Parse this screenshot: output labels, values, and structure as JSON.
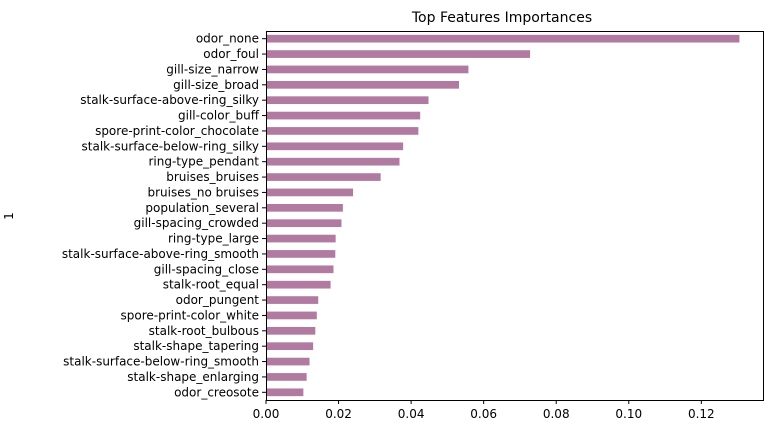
{
  "chart_data": {
    "type": "bar",
    "orientation": "horizontal",
    "title": "Top Features Importances",
    "xlabel": "",
    "ylabel": "1",
    "xlim": [
      0,
      0.137
    ],
    "xticks": [
      0.0,
      0.02,
      0.04,
      0.06,
      0.08,
      0.1,
      0.12
    ],
    "xtick_labels": [
      "0.00",
      "0.02",
      "0.04",
      "0.06",
      "0.08",
      "0.10",
      "0.12"
    ],
    "grid": false,
    "legend": "none",
    "bar_color": "#b07aa1",
    "categories": [
      "odor_none",
      "odor_foul",
      "gill-size_narrow",
      "gill-size_broad",
      "stalk-surface-above-ring_silky",
      "gill-color_buff",
      "spore-print-color_chocolate",
      "stalk-surface-below-ring_silky",
      "ring-type_pendant",
      "bruises_bruises",
      "bruises_no bruises",
      "population_several",
      "gill-spacing_crowded",
      "ring-type_large",
      "stalk-surface-above-ring_smooth",
      "gill-spacing_close",
      "stalk-root_equal",
      "odor_pungent",
      "spore-print-color_white",
      "stalk-root_bulbous",
      "stalk-shape_tapering",
      "stalk-surface-below-ring_smooth",
      "stalk-shape_enlarging",
      "odor_creosote"
    ],
    "values": [
      0.1305,
      0.0728,
      0.0558,
      0.0532,
      0.0448,
      0.0425,
      0.042,
      0.0378,
      0.0368,
      0.0316,
      0.024,
      0.0212,
      0.0208,
      0.0192,
      0.0191,
      0.0186,
      0.0178,
      0.0144,
      0.014,
      0.0136,
      0.013,
      0.012,
      0.0112,
      0.0103
    ]
  }
}
